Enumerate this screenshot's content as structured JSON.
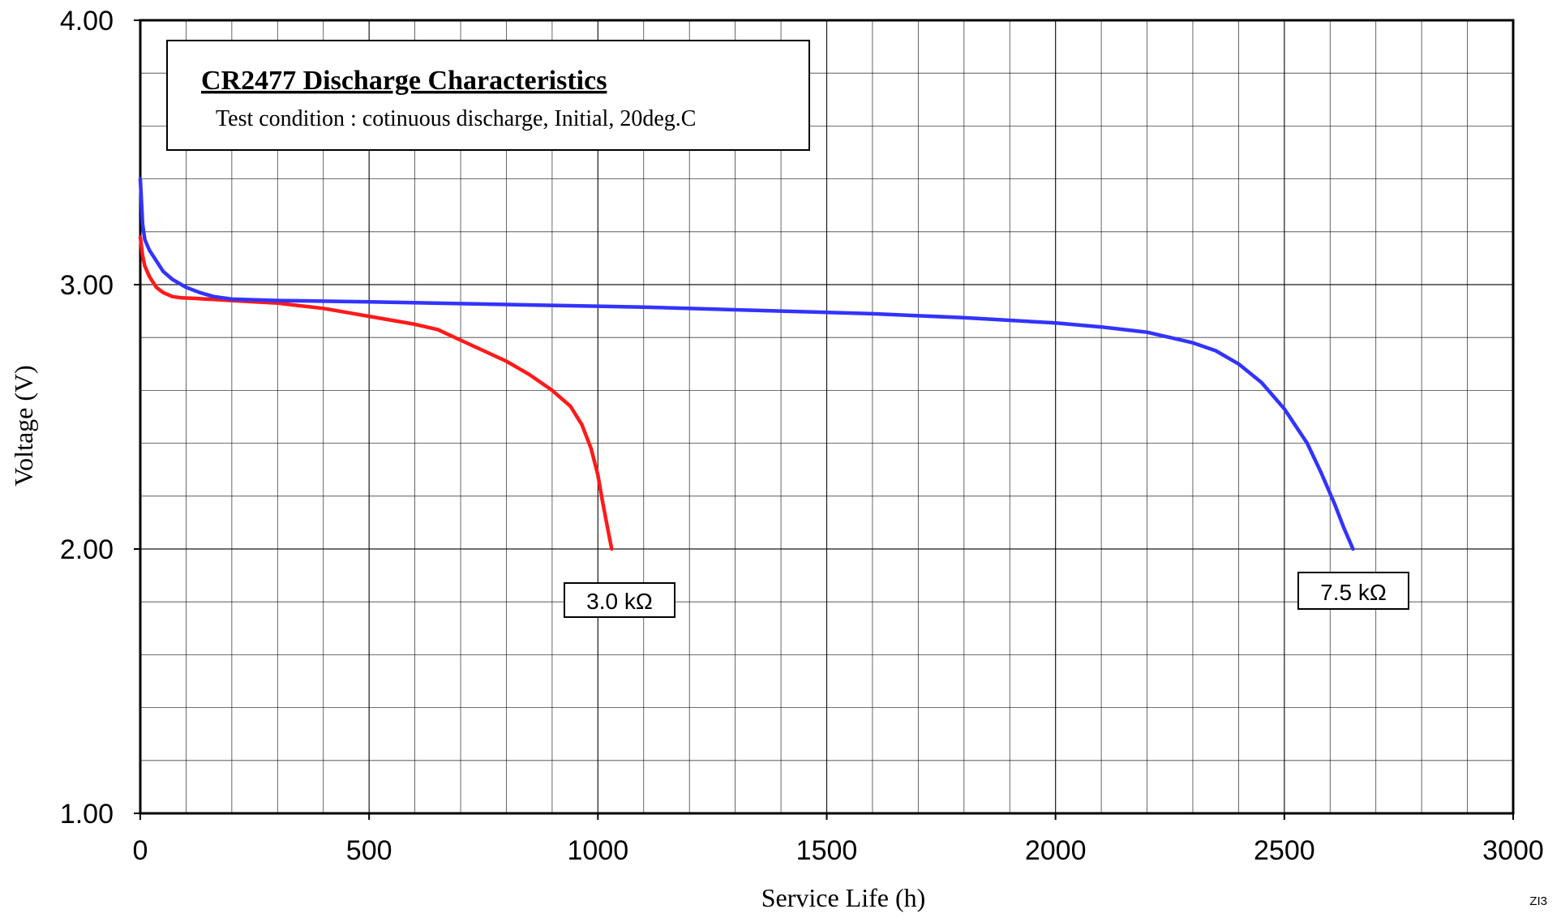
{
  "chart_data": {
    "type": "line",
    "title": "CR2477 Discharge Characteristics",
    "subtitle": "Test condition : cotinuous discharge, Initial, 20deg.C",
    "xlabel": "Service Life (h)",
    "ylabel": "Voltage (V)",
    "xlim": [
      0,
      3000
    ],
    "ylim": [
      1.0,
      4.0
    ],
    "x_ticks": [
      "0",
      "500",
      "1000",
      "1500",
      "2000",
      "2500",
      "3000"
    ],
    "y_ticks": [
      "1.00",
      "2.00",
      "3.00",
      "4.00"
    ],
    "x_tick_values": [
      0,
      500,
      1000,
      1500,
      2000,
      2500,
      3000
    ],
    "y_tick_values": [
      1.0,
      2.0,
      3.0,
      4.0
    ],
    "minor_x_step": 100,
    "minor_y_step": 0.2,
    "grid": true,
    "series": [
      {
        "name": "3.0 kΩ",
        "color": "#ff1a1a",
        "x": [
          0,
          5,
          10,
          20,
          35,
          50,
          70,
          90,
          120,
          160,
          200,
          250,
          300,
          350,
          400,
          450,
          500,
          550,
          600,
          650,
          700,
          750,
          800,
          850,
          900,
          940,
          965,
          985,
          1000,
          1010,
          1020,
          1030
        ],
        "y": [
          3.18,
          3.11,
          3.07,
          3.03,
          2.99,
          2.97,
          2.955,
          2.95,
          2.948,
          2.944,
          2.94,
          2.935,
          2.93,
          2.92,
          2.91,
          2.895,
          2.88,
          2.865,
          2.85,
          2.83,
          2.79,
          2.75,
          2.71,
          2.66,
          2.6,
          2.54,
          2.47,
          2.38,
          2.28,
          2.18,
          2.09,
          2.0
        ]
      },
      {
        "name": "7.5 kΩ",
        "color": "#3333ff",
        "x": [
          0,
          3,
          5,
          10,
          20,
          35,
          50,
          70,
          100,
          130,
          160,
          200,
          300,
          500,
          800,
          1100,
          1400,
          1600,
          1800,
          2000,
          2100,
          2200,
          2250,
          2300,
          2350,
          2400,
          2450,
          2500,
          2550,
          2580,
          2610,
          2630,
          2650
        ],
        "y": [
          3.4,
          3.3,
          3.23,
          3.17,
          3.13,
          3.09,
          3.05,
          3.02,
          2.99,
          2.97,
          2.955,
          2.945,
          2.94,
          2.935,
          2.925,
          2.915,
          2.9,
          2.89,
          2.875,
          2.855,
          2.84,
          2.82,
          2.8,
          2.78,
          2.75,
          2.7,
          2.63,
          2.53,
          2.4,
          2.29,
          2.17,
          2.08,
          2.0
        ]
      }
    ],
    "annotations": [
      {
        "text": "3.0 kΩ",
        "x": 1040,
        "y": 1.8,
        "series": "3.0 kΩ"
      },
      {
        "text": "7.5 kΩ",
        "x": 2650,
        "y": 1.85,
        "series": "7.5 kΩ"
      }
    ],
    "legend": "none",
    "corner_code": "ZI3"
  }
}
